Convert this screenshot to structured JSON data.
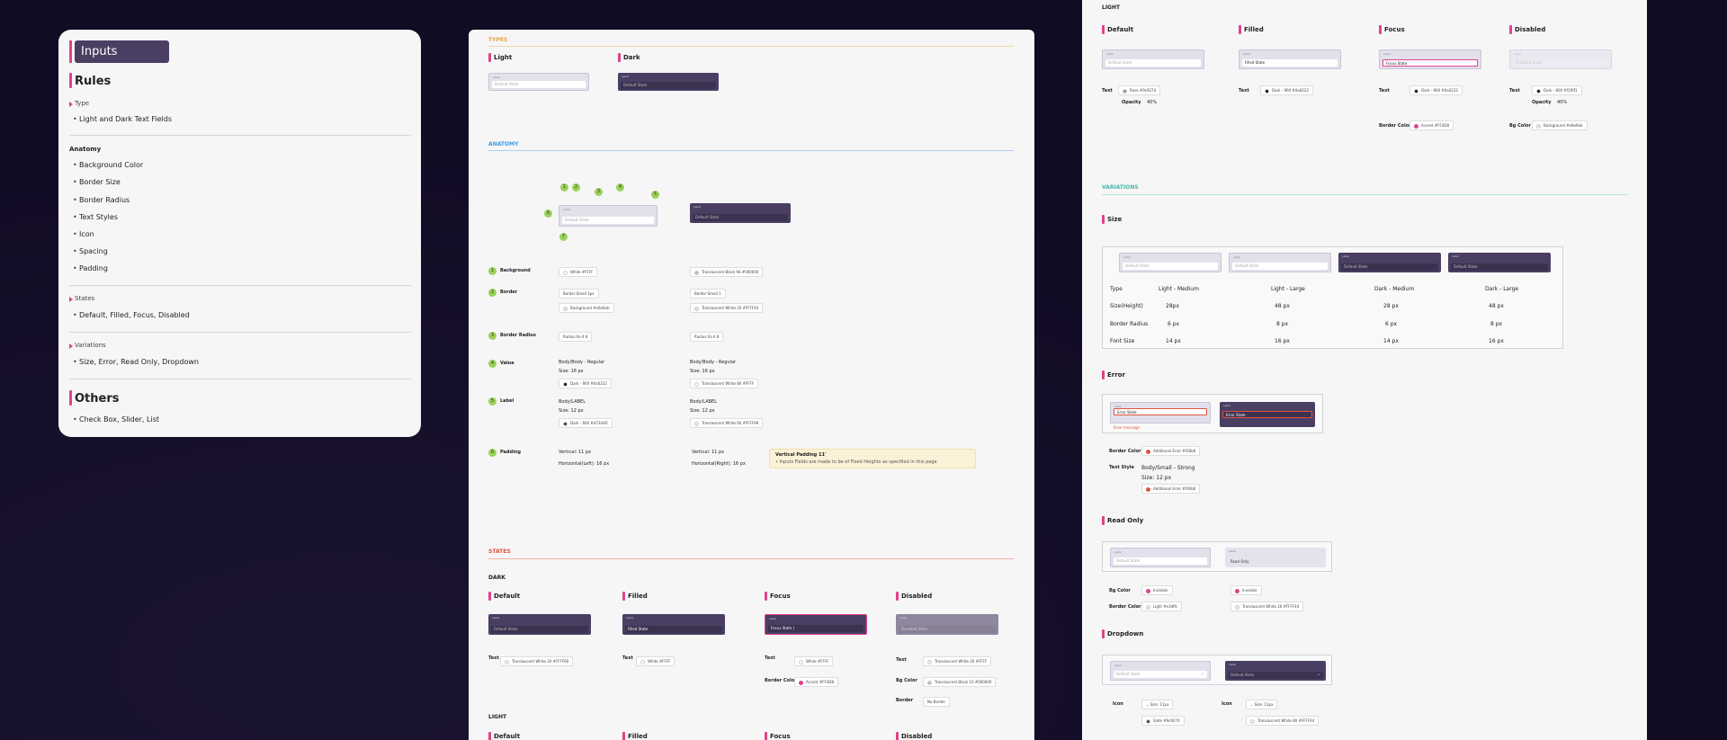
{
  "rules": {
    "title": "Inputs",
    "heading": "Rules",
    "type_label": "Type",
    "type_item": "Light and Dark Text Fields",
    "anatomy_label": "Anatomy",
    "anatomy_items": [
      "Background Color",
      "Border Size",
      "Border Radius",
      "Text Styles",
      "Icon",
      "Spacing",
      "Padding"
    ],
    "states_label": "States",
    "states_item": "Default, Filled, Focus, Disabled",
    "variations_label": "Variations",
    "variations_item": "Size, Error, Read Only, Dropdown",
    "others_heading": "Others",
    "others_item": "Check Box, Slider, List"
  },
  "middle": {
    "types": "TYPES",
    "light": "Light",
    "dark": "Dark",
    "label": "Label",
    "default_state": "Default State",
    "anatomy": "ANATOMY",
    "callout_numbers": [
      "1",
      "2",
      "3",
      "4",
      "5",
      "6",
      "7"
    ],
    "rows": [
      {
        "n": "1",
        "name": "Background",
        "light": "White  #FFFF",
        "dark": "Transluscent Black 90  #000000"
      },
      {
        "n": "2",
        "name": "Border",
        "light": "Border:Small 1px",
        "light2": "Background  #e6e6eb",
        "dark": "Border:Small 1",
        "dark2": "Transluscent White 20  #FFFF44"
      },
      {
        "n": "3",
        "name": "Border Radius",
        "light": "Radius:Xs-4  8",
        "dark": "Radius:Xs-4  8"
      },
      {
        "n": "4",
        "name": "Value",
        "light": "Body/Body - Regular",
        "light_size": "Size: 16 px",
        "light2": "Dark - 900  #0a0222",
        "dark": "Body/Body - Regular",
        "dark_size": "Size: 16 px",
        "dark2": "Transluscent White 80  #FFFF"
      },
      {
        "n": "5",
        "name": "Label",
        "light": "Body/LABEL",
        "light_size": "Size: 12 px",
        "light2": "Dark - 600  #47344D",
        "dark": "Body/LABEL",
        "dark_size": "Size: 12 px",
        "dark2": "Transluscent White 60  #FFFF99"
      },
      {
        "n": "6",
        "name": "Padding",
        "light": "Vertical: 11 px",
        "light_h": "Horizontal(Left): 16 px",
        "dark": "Vertical: 11 px",
        "dark_h": "Horizontal(Right): 16 px"
      }
    ],
    "note_title": "Vertical Padding 11'",
    "note_body": "• Inputs Fields are made to be of Fixed Heights as specified in this page",
    "states": "STATES",
    "dark_caps": "DARK",
    "light_caps": "LIGHT",
    "state_names": [
      "Default",
      "Filled",
      "Focus",
      "Disabled"
    ],
    "state_values": [
      "Default State",
      "Filled State",
      "Focus State |",
      "Disabled State"
    ],
    "text_label": "Text",
    "state_text_chips": [
      "Transluscent White 20  #FFFF60",
      "White  #FFFF",
      "White  #FFFF",
      "Transluscent White 20  #FFFF"
    ],
    "border_color_label": "Border Color",
    "accent_chip": "Accent  #FF4D8",
    "bg_color_label": "Bg Color",
    "bg_chip": "Transluscent Black 10  #000000",
    "border_label": "Border",
    "no_border": "No Border"
  },
  "right": {
    "light_caps": "LIGHT",
    "state_names": [
      "Default",
      "Filled",
      "Focus",
      "Disabled"
    ],
    "state_values": [
      "Default State",
      "Filled State",
      "Focus State",
      "Disabled State"
    ],
    "text_label": "Text",
    "chips": [
      "Rose  #9c9274",
      "Dark - 900  #0a0222",
      "Dark - 900  #0a0222",
      "Dark - 600  #f1f0f1"
    ],
    "opacity_label": "Opacity",
    "opacity_value": "40%",
    "border_color_label": "Border Color",
    "accent_chip": "Accent  #FF4D8",
    "bg_color_label": "Bg Color",
    "bg_chip": "Background  #e6e6eb",
    "variations": "VARIATIONS",
    "size": "Size",
    "size_table": {
      "headers": [
        "Type",
        "Light - Medium",
        "Light - Large",
        "Dark - Medium",
        "Dark - Large"
      ],
      "rows": [
        [
          "Size(Height)",
          "28px",
          "48 px",
          "28 px",
          "48 px"
        ],
        [
          "Border Radius",
          "6 px",
          "8 px",
          "6 px",
          "8 px"
        ],
        [
          "Font Size",
          "14 px",
          "16 px",
          "14 px",
          "16 px"
        ]
      ]
    },
    "error": "Error",
    "error_state": "Error State",
    "error_message": "Error message",
    "error_border_chip": "Additional Error  #f26b6",
    "text_style_label": "Text Style",
    "text_style_value": "Body/Small - Strong",
    "text_style_size": "Size: 12 px",
    "error_text_chip": "Additional Error  #f26b6",
    "read_only": "Read Only",
    "read_only_value": "Read Only",
    "ro_bg_chip": "Invisible",
    "ro_border_chip": "Light  #e3dffc",
    "ro_bg_chip2": "Invisible",
    "ro_border_chip2": "Transluscent White 20  #FFFF44",
    "dropdown": "Dropdown",
    "dd_icon_label": "Icon",
    "dd_size_chip": "Size: 11px",
    "dd_color_chip": "Slate  #9c9274",
    "dd_size_chip2": "Size: 11px",
    "dd_color_chip2": "Transluscent White 80  #FFFF44"
  }
}
